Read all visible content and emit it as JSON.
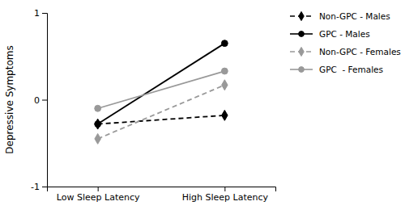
{
  "chart_data": {
    "type": "line",
    "y_label": "Depressive Symptoms",
    "categories": [
      "Low Sleep Latency",
      "High Sleep Latency"
    ],
    "series": [
      {
        "name": "Non-GPC - Males",
        "color": "#000000",
        "line_style": "dashed",
        "marker": "diamond",
        "values": [
          -0.28,
          -0.18
        ]
      },
      {
        "name": "GPC - Males",
        "color": "#000000",
        "line_style": "solid",
        "marker": "circle",
        "values": [
          -0.28,
          0.65
        ]
      },
      {
        "name": "Non-GPC - Females",
        "color": "#999999",
        "line_style": "dashed",
        "marker": "diamond",
        "values": [
          -0.45,
          0.17
        ]
      },
      {
        "name": "GPC  - Females",
        "color": "#999999",
        "line_style": "solid",
        "marker": "circle",
        "values": [
          -0.1,
          0.33
        ]
      }
    ],
    "ylim": [
      -1.0,
      1.0
    ],
    "yticks": [
      -1,
      0,
      1
    ],
    "grid": false,
    "legend": "right"
  }
}
